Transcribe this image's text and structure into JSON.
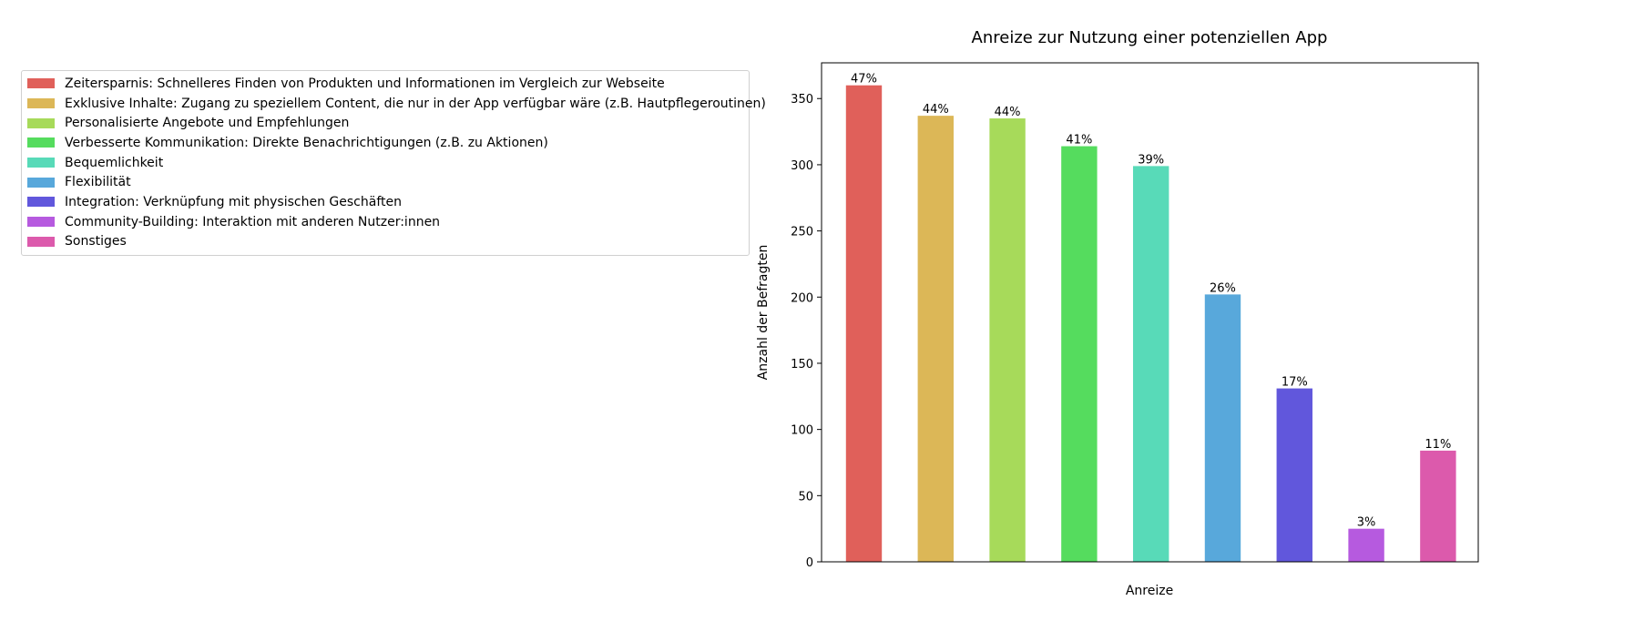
{
  "chart_data": {
    "type": "bar",
    "title": "Anreize zur Nutzung einer potenziellen App",
    "xlabel": "Anreize",
    "ylabel": "Anzahl der Befragten",
    "ylim": [
      0,
      377
    ],
    "yticks": [
      0,
      50,
      100,
      150,
      200,
      250,
      300,
      350
    ],
    "grid": false,
    "legend_position": "left",
    "categories": [
      "Zeitersparnis: Schnelleres Finden von Produkten und Informationen im Vergleich zur Webseite",
      "Exklusive Inhalte: Zugang zu speziellem Content, die nur in der App verfügbar wäre (z.B. Hautpflegeroutinen)",
      "Personalisierte Angebote und Empfehlungen",
      "Verbesserte Kommunikation: Direkte Benachrichtigungen (z.B. zu Aktionen)",
      "Bequemlichkeit",
      "Flexibilität",
      "Integration: Verknüpfung mit physischen Geschäften",
      "Community-Building: Interaktion mit anderen Nutzer:innen",
      "Sonstiges"
    ],
    "values": [
      360,
      337,
      335,
      314,
      299,
      202,
      131,
      25,
      84
    ],
    "data_labels": [
      "47%",
      "44%",
      "44%",
      "41%",
      "39%",
      "26%",
      "17%",
      "3%",
      "11%"
    ],
    "colors": [
      "#e0605a",
      "#dcb757",
      "#a7da5a",
      "#55dc5e",
      "#58dab8",
      "#58a8db",
      "#6157dc",
      "#b65adf",
      "#dc5aac"
    ]
  }
}
